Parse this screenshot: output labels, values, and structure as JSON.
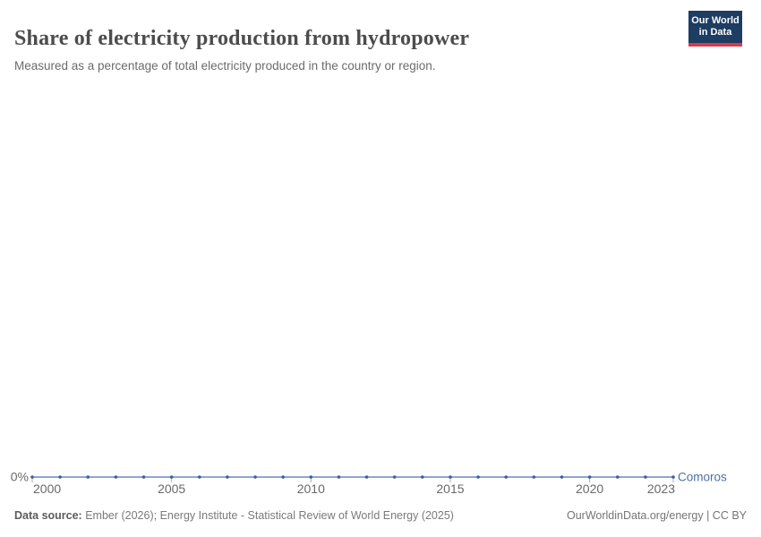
{
  "header": {
    "title": "Share of electricity production from hydropower",
    "subtitle": "Measured as a percentage of total electricity produced in the country or region.",
    "logo": {
      "line1": "Our World",
      "line2": "in Data",
      "bg_color": "#1d3d63",
      "accent_color": "#d93a4a"
    }
  },
  "chart_data": {
    "type": "line",
    "title": "Share of electricity production from hydropower",
    "xlabel": "",
    "ylabel": "",
    "unit": "%",
    "xlim": [
      2000,
      2023
    ],
    "ylim": [
      0,
      0
    ],
    "grid": false,
    "legend_position": "end-of-line",
    "x_ticks": [
      2000,
      2005,
      2010,
      2015,
      2020,
      2023
    ],
    "y_ticks": [
      "0%"
    ],
    "series": [
      {
        "name": "Comoros",
        "x": [
          2000,
          2001,
          2002,
          2003,
          2004,
          2005,
          2006,
          2007,
          2008,
          2009,
          2010,
          2011,
          2012,
          2013,
          2014,
          2015,
          2016,
          2017,
          2018,
          2019,
          2020,
          2021,
          2022,
          2023
        ],
        "values": [
          0,
          0,
          0,
          0,
          0,
          0,
          0,
          0,
          0,
          0,
          0,
          0,
          0,
          0,
          0,
          0,
          0,
          0,
          0,
          0,
          0,
          0,
          0,
          0
        ],
        "label_color": "#4c6fa5",
        "line_color": "#6b8abc",
        "marker_color": "#3d5d9b"
      }
    ],
    "colors": {
      "tick_label": "#696969",
      "tick_mark": "#a0adc0"
    }
  },
  "footer": {
    "source_label": "Data source: ",
    "source_text": "Ember (2026); Energy Institute - Statistical Review of World Energy (2025)",
    "link": "OurWorldinData.org/energy | CC BY"
  }
}
